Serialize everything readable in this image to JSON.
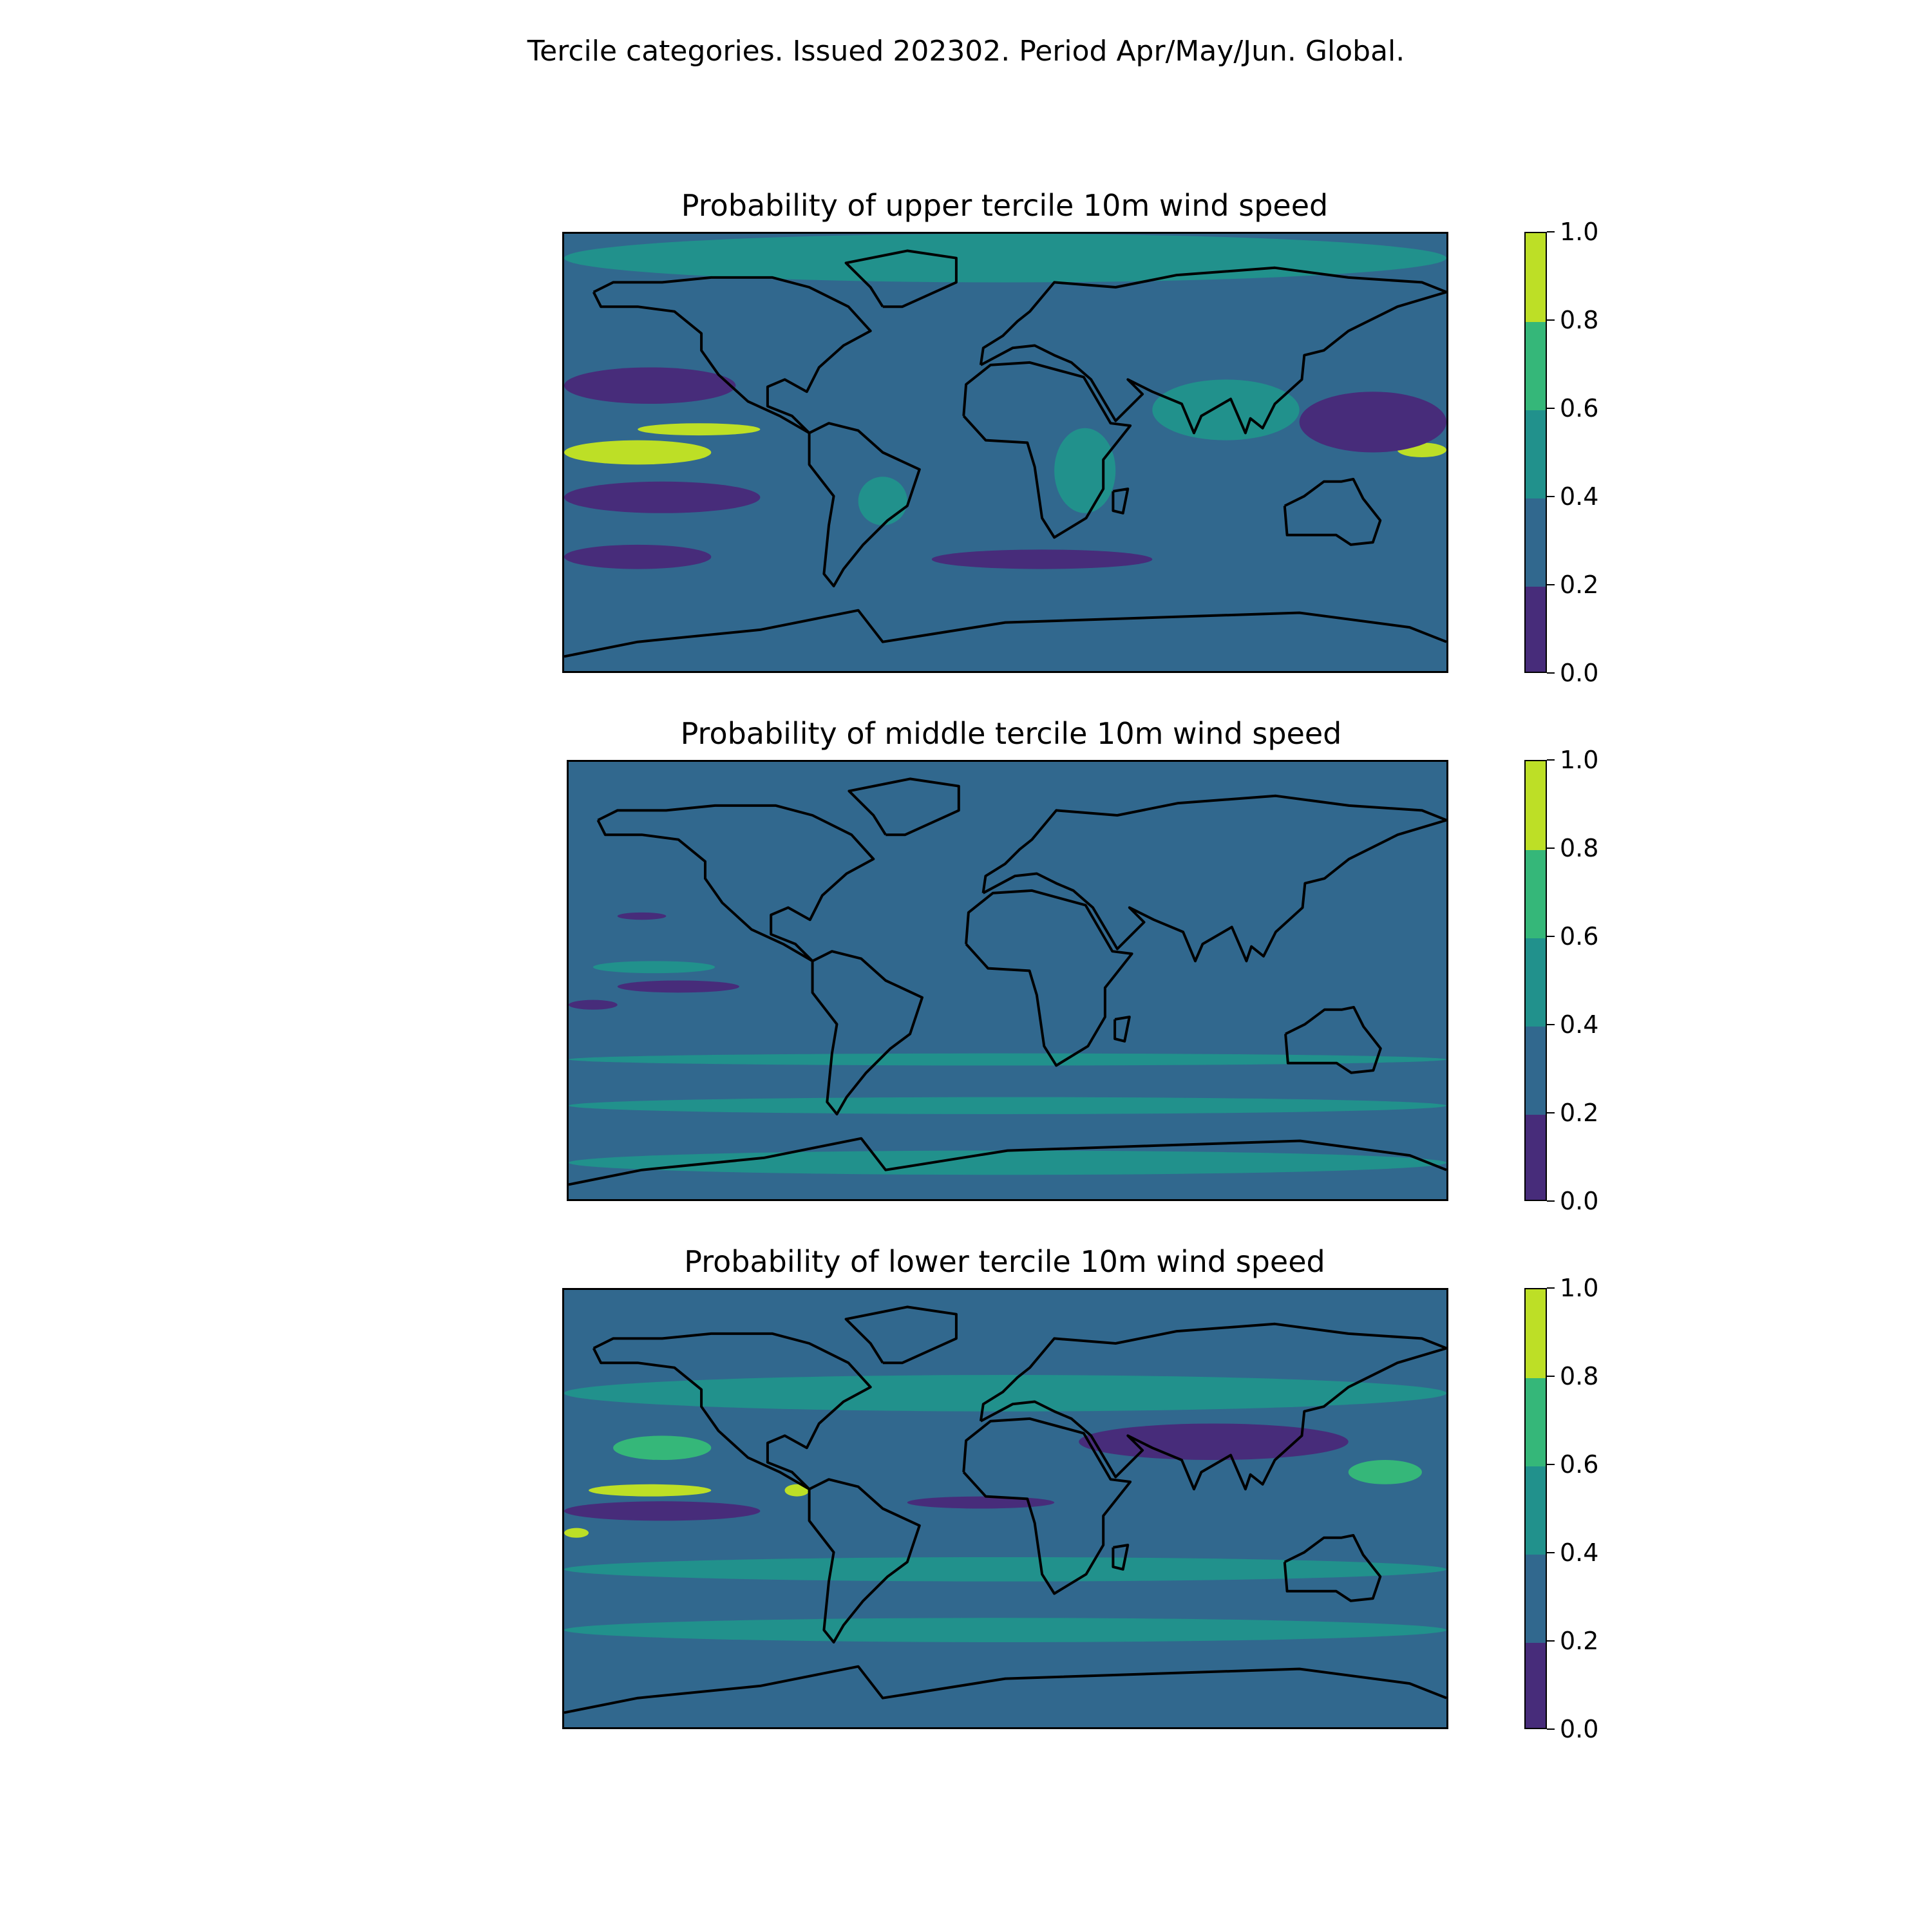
{
  "figure_title": "Tercile categories. Issued 202302. Period Apr/May/Jun. Global.",
  "colorbar": {
    "ticks": [
      "0.0",
      "0.2",
      "0.4",
      "0.6",
      "0.8",
      "1.0"
    ],
    "levels": [
      0.0,
      0.2,
      0.4,
      0.6,
      0.8,
      1.0
    ],
    "colors": [
      "#472c7a",
      "#31688e",
      "#21918c",
      "#35b779",
      "#bddf26"
    ]
  },
  "panels": [
    {
      "title": "Probability of upper tercile 10m wind speed",
      "background": "#31688e",
      "patches": [
        {
          "lon": [
            -180,
            -120
          ],
          "lat": [
            -5,
            5
          ],
          "class": 4
        },
        {
          "lon": [
            -150,
            -100
          ],
          "lat": [
            7,
            12
          ],
          "class": 4
        },
        {
          "lon": [
            160,
            180
          ],
          "lat": [
            -2,
            4
          ],
          "class": 4
        },
        {
          "lon": [
            -180,
            -110
          ],
          "lat": [
            20,
            35
          ],
          "class": 0
        },
        {
          "lon": [
            -180,
            -100
          ],
          "lat": [
            -25,
            -12
          ],
          "class": 0
        },
        {
          "lon": [
            -180,
            -120
          ],
          "lat": [
            -48,
            -38
          ],
          "class": 0
        },
        {
          "lon": [
            -30,
            60
          ],
          "lat": [
            -48,
            -40
          ],
          "class": 0
        },
        {
          "lon": [
            120,
            180
          ],
          "lat": [
            0,
            25
          ],
          "class": 0
        },
        {
          "lon": [
            -180,
            180
          ],
          "lat": [
            70,
            90
          ],
          "class": 2
        },
        {
          "lon": [
            20,
            45
          ],
          "lat": [
            -25,
            10
          ],
          "class": 2
        },
        {
          "lon": [
            -60,
            -40
          ],
          "lat": [
            -30,
            -10
          ],
          "class": 2
        },
        {
          "lon": [
            60,
            120
          ],
          "lat": [
            5,
            30
          ],
          "class": 2
        }
      ]
    },
    {
      "title": "Probability of middle tercile 10m wind speed",
      "background": "#31688e",
      "patches": [
        {
          "lon": [
            -160,
            -110
          ],
          "lat": [
            -5,
            0
          ],
          "class": 0
        },
        {
          "lon": [
            -170,
            -120
          ],
          "lat": [
            3,
            8
          ],
          "class": 2
        },
        {
          "lon": [
            -180,
            180
          ],
          "lat": [
            -80,
            -70
          ],
          "class": 2
        },
        {
          "lon": [
            -180,
            180
          ],
          "lat": [
            -55,
            -48
          ],
          "class": 2
        },
        {
          "lon": [
            -180,
            180
          ],
          "lat": [
            -35,
            -30
          ],
          "class": 2
        },
        {
          "lon": [
            -180,
            -160
          ],
          "lat": [
            -12,
            -8
          ],
          "class": 0
        },
        {
          "lon": [
            -160,
            -140
          ],
          "lat": [
            25,
            28
          ],
          "class": 0
        }
      ]
    },
    {
      "title": "Probability of lower tercile 10m wind speed",
      "background": "#31688e",
      "patches": [
        {
          "lon": [
            -170,
            -120
          ],
          "lat": [
            5,
            10
          ],
          "class": 4
        },
        {
          "lon": [
            -90,
            -80
          ],
          "lat": [
            5,
            10
          ],
          "class": 4
        },
        {
          "lon": [
            -180,
            -170
          ],
          "lat": [
            -12,
            -8
          ],
          "class": 4
        },
        {
          "lon": [
            140,
            170
          ],
          "lat": [
            10,
            20
          ],
          "class": 3
        },
        {
          "lon": [
            -160,
            -120
          ],
          "lat": [
            20,
            30
          ],
          "class": 3
        },
        {
          "lon": [
            -180,
            -100
          ],
          "lat": [
            -5,
            3
          ],
          "class": 0
        },
        {
          "lon": [
            -40,
            20
          ],
          "lat": [
            0,
            5
          ],
          "class": 0
        },
        {
          "lon": [
            30,
            140
          ],
          "lat": [
            20,
            35
          ],
          "class": 0
        },
        {
          "lon": [
            -180,
            180
          ],
          "lat": [
            -30,
            -20
          ],
          "class": 2
        },
        {
          "lon": [
            -180,
            180
          ],
          "lat": [
            -55,
            -45
          ],
          "class": 2
        },
        {
          "lon": [
            -180,
            180
          ],
          "lat": [
            40,
            55
          ],
          "class": 2
        }
      ]
    }
  ]
}
